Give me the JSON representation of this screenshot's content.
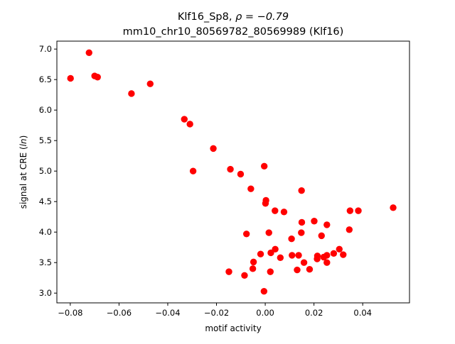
{
  "chart_data": {
    "type": "scatter",
    "title_line1_prefix": "Klf16_Sp8, ",
    "title_line1_math": "ρ = −0.79",
    "title_line2": "mm10_chr10_80569782_80569989 (Klf16)",
    "xlabel": "motif activity",
    "ylabel_prefix": "signal at CRE (",
    "ylabel_math": "ln",
    "ylabel_suffix": ")",
    "xlim": [
      -0.0855,
      0.0592
    ],
    "ylim": [
      2.84,
      7.13
    ],
    "x_ticks": [
      {
        "value": -0.08,
        "label": "−0.08"
      },
      {
        "value": -0.06,
        "label": "−0.06"
      },
      {
        "value": -0.04,
        "label": "−0.04"
      },
      {
        "value": -0.02,
        "label": "−0.02"
      },
      {
        "value": 0.0,
        "label": "0.00"
      },
      {
        "value": 0.02,
        "label": "0.02"
      },
      {
        "value": 0.04,
        "label": "0.04"
      }
    ],
    "y_ticks": [
      {
        "value": 3.0,
        "label": "3.0"
      },
      {
        "value": 3.5,
        "label": "3.5"
      },
      {
        "value": 4.0,
        "label": "4.0"
      },
      {
        "value": 4.5,
        "label": "4.5"
      },
      {
        "value": 5.0,
        "label": "5.0"
      },
      {
        "value": 5.5,
        "label": "5.5"
      },
      {
        "value": 6.0,
        "label": "6.0"
      },
      {
        "value": 6.5,
        "label": "6.5"
      },
      {
        "value": 7.0,
        "label": "7.0"
      }
    ],
    "grid": false,
    "legend": "none",
    "marker_color": "#ff0000",
    "points": [
      [
        -0.0799,
        6.52
      ],
      [
        -0.0723,
        6.94
      ],
      [
        -0.07,
        6.56
      ],
      [
        -0.0688,
        6.54
      ],
      [
        -0.0549,
        6.27
      ],
      [
        -0.0472,
        6.43
      ],
      [
        -0.0332,
        5.85
      ],
      [
        -0.0309,
        5.77
      ],
      [
        -0.0213,
        5.37
      ],
      [
        -0.0296,
        5.0
      ],
      [
        -0.0143,
        5.03
      ],
      [
        -0.0101,
        4.95
      ],
      [
        -0.0059,
        4.71
      ],
      [
        -0.0004,
        5.08
      ],
      [
        0.0003,
        4.52
      ],
      [
        0.0001,
        4.47
      ],
      [
        0.004,
        4.35
      ],
      [
        0.0077,
        4.33
      ],
      [
        0.0149,
        4.68
      ],
      [
        0.015,
        4.16
      ],
      [
        0.0201,
        4.18
      ],
      [
        0.0253,
        4.12
      ],
      [
        0.0348,
        4.35
      ],
      [
        0.0382,
        4.35
      ],
      [
        0.0525,
        4.4
      ],
      [
        0.0345,
        4.04
      ],
      [
        0.0015,
        3.99
      ],
      [
        -0.0077,
        3.97
      ],
      [
        0.0108,
        3.89
      ],
      [
        0.0148,
        3.99
      ],
      [
        0.0231,
        3.94
      ],
      [
        0.0041,
        3.72
      ],
      [
        -0.0019,
        3.64
      ],
      [
        0.0023,
        3.66
      ],
      [
        0.0062,
        3.58
      ],
      [
        0.011,
        3.62
      ],
      [
        0.0137,
        3.62
      ],
      [
        0.0159,
        3.5
      ],
      [
        0.0214,
        3.61
      ],
      [
        0.0213,
        3.56
      ],
      [
        0.024,
        3.59
      ],
      [
        0.0253,
        3.62
      ],
      [
        0.0253,
        3.5
      ],
      [
        0.0281,
        3.65
      ],
      [
        0.0304,
        3.72
      ],
      [
        0.032,
        3.63
      ],
      [
        -0.0048,
        3.51
      ],
      [
        -0.0051,
        3.4
      ],
      [
        0.0131,
        3.38
      ],
      [
        0.0182,
        3.39
      ],
      [
        -0.0149,
        3.35
      ],
      [
        0.0021,
        3.35
      ],
      [
        -0.0085,
        3.29
      ],
      [
        -0.0005,
        3.03
      ]
    ]
  }
}
